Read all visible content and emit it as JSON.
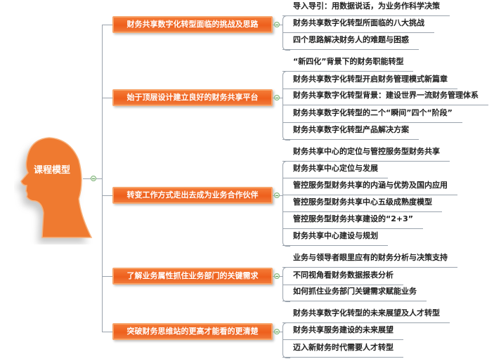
{
  "root": {
    "label": "课程模型",
    "color": "#ef7a30",
    "icon": "head-silhouette-icon"
  },
  "accent_color": "#ee5f1c",
  "branches": [
    {
      "label": "财务共享数字化转型面临的挑战及思路",
      "children": [
        "导入导引：用数据说话，为业务作科学决策",
        "财务共享数字化转型所面临的八大挑战",
        "四个思路解决财务人的难题与困惑"
      ]
    },
    {
      "label": "始于顶层设计建立良好的财务共享平台",
      "children": [
        "“新四化”背景下的财务职能转型",
        "财务共享数字化转型开启财务管理模式新篇章",
        "财务共享数字化转型背景：建设世界一流财务管理体系",
        "财务共享数字化转型的二个“瞬间”四个“阶段”",
        "财务共享数字化转型产品解决方案"
      ]
    },
    {
      "label": "转变工作方式走出去成为业务合作伙伴",
      "children": [
        "财务共享中心的定位与管控服务型财务共享",
        "财务共享中心定位与发展",
        "管控服务型财务共享的内涵与优势及国内应用",
        "管控服务型财务共享中心五级成熟度模型",
        "管控服务型财务共享建设的“2+3”",
        "财务共享中心建设与规划"
      ]
    },
    {
      "label": "了解业务属性抓住业务部门的关键需求",
      "children": [
        "业务与领导者眼里应有的财务分析与决策支持",
        "不同视角看财务数据报表分析",
        "如何抓住业务部门关键需求赋能业务"
      ]
    },
    {
      "label": "突破财务思维站的更高才能看的更清楚",
      "children": [
        "财务共享数字化转型的未来展望及人才转型",
        "财务共享服务建设的未来展望",
        "迈入新财务时代需要人才转型"
      ]
    }
  ]
}
